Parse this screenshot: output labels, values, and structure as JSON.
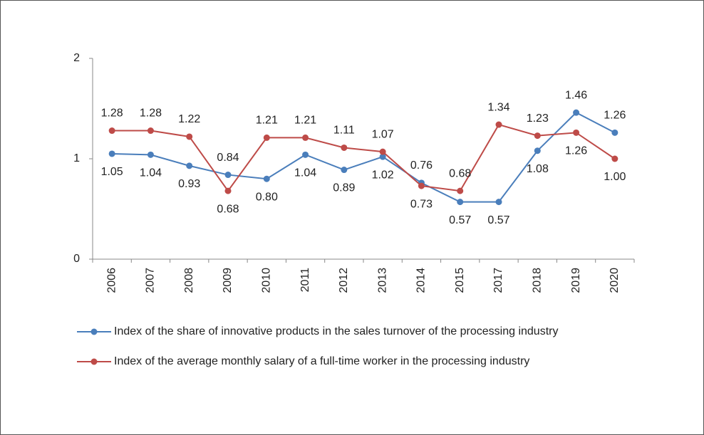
{
  "chart_data": {
    "type": "line",
    "categories": [
      "2006",
      "2007",
      "2008",
      "2009",
      "2010",
      "2011",
      "2012",
      "2013",
      "2014",
      "2015",
      "2017",
      "2018",
      "2019",
      "2020"
    ],
    "series": [
      {
        "name": "Index of the share of innovative products in the sales turnover of the processing industry",
        "color": "#4a7ebb",
        "values": [
          1.05,
          1.04,
          0.93,
          0.84,
          0.8,
          1.04,
          0.89,
          1.02,
          0.76,
          0.57,
          0.57,
          1.08,
          1.46,
          1.26
        ],
        "value_labels": [
          "1.05",
          "1.04",
          "0.93",
          "0.84",
          "0.80",
          "1.04",
          "0.89",
          "1.02",
          "0.76",
          "0.57",
          "0.57",
          "1.08",
          "1.46",
          "1.26"
        ]
      },
      {
        "name": "Index of the average monthly salary of a full-time worker in the processing industry",
        "color": "#be4b48",
        "values": [
          1.28,
          1.28,
          1.22,
          0.68,
          1.21,
          1.21,
          1.11,
          1.07,
          0.73,
          0.68,
          1.34,
          1.23,
          1.26,
          1.0
        ],
        "value_labels": [
          "1.28",
          "1.28",
          "1.22",
          "0.68",
          "1.21",
          "1.21",
          "1.11",
          "1.07",
          "0.73",
          "0.68",
          "1.34",
          "1.23",
          "1.26",
          "1.00"
        ]
      }
    ],
    "ylim": [
      0,
      2
    ],
    "yticks": [
      0,
      1,
      2
    ],
    "grid": false,
    "legend": "bottom"
  }
}
